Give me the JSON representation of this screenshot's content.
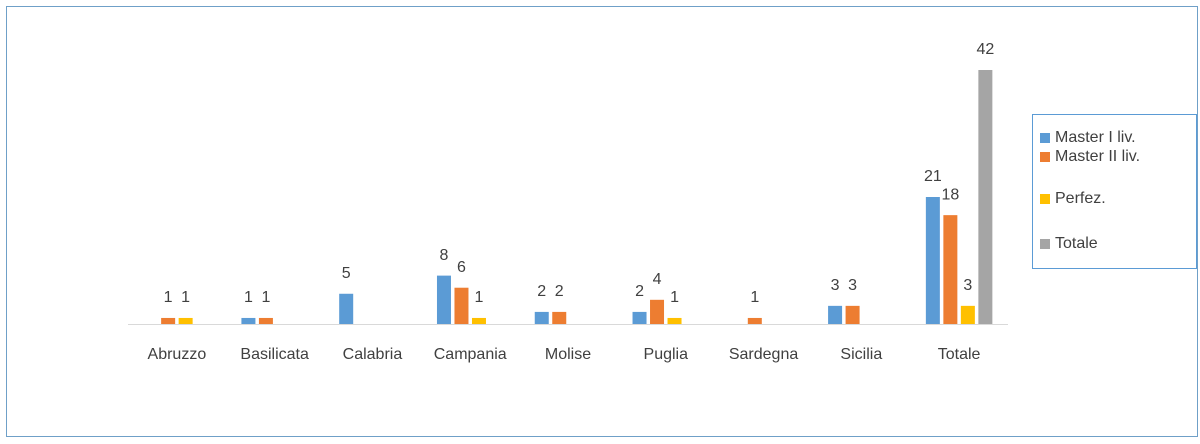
{
  "chart_data": {
    "type": "bar",
    "categories": [
      "Abruzzo",
      "Basilicata",
      "Calabria",
      "Campania",
      "Molise",
      "Puglia",
      "Sardegna",
      "Sicilia",
      "Totale"
    ],
    "series": [
      {
        "name": "Master I liv.",
        "color": "#5b9bd5",
        "values": [
          null,
          1,
          5,
          8,
          2,
          2,
          null,
          3,
          21
        ]
      },
      {
        "name": "Master II liv.",
        "color": "#ed7d31",
        "values": [
          1,
          1,
          null,
          6,
          2,
          4,
          1,
          3,
          18
        ]
      },
      {
        "name": "Perfez.",
        "color": "#ffc000",
        "values": [
          1,
          null,
          null,
          1,
          null,
          1,
          null,
          null,
          3
        ]
      },
      {
        "name": "Totale",
        "color": "#a5a5a5",
        "values": [
          null,
          null,
          null,
          null,
          null,
          null,
          null,
          null,
          42
        ]
      }
    ],
    "legend": "right"
  }
}
